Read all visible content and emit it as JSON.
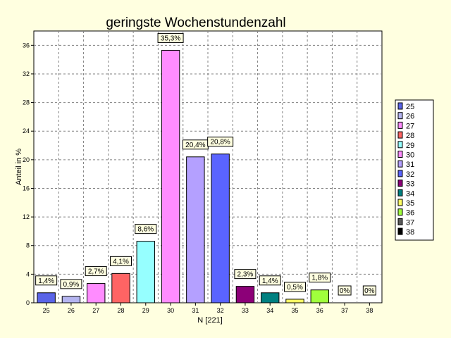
{
  "chart_data": {
    "type": "bar",
    "title": "geringste Wochenstundenzahl",
    "xlabel": "N [221]",
    "ylabel": "Anteil in %",
    "ylim": [
      0,
      38
    ],
    "yticks": [
      0,
      4,
      8,
      12,
      16,
      20,
      24,
      28,
      32,
      36
    ],
    "grid": true,
    "legend_position": "right",
    "categories": [
      "25",
      "26",
      "27",
      "28",
      "29",
      "30",
      "31",
      "32",
      "33",
      "34",
      "35",
      "36",
      "37",
      "38"
    ],
    "values": [
      1.4,
      0.9,
      2.7,
      4.1,
      8.6,
      35.3,
      20.4,
      20.8,
      2.3,
      1.4,
      0.5,
      1.8,
      0,
      0
    ],
    "data_labels": [
      "1,4%",
      "0,9%",
      "2,7%",
      "4,1%",
      "8,6%",
      "35,3%",
      "20,4%",
      "20,8%",
      "2,3%",
      "1,4%",
      "0,5%",
      "1,8%",
      "0%",
      "0%"
    ],
    "colors": [
      "#5a64e8",
      "#b4b4f0",
      "#ff8cff",
      "#ff6464",
      "#96ffff",
      "#ff8cff",
      "#b4a0ff",
      "#5a64ff",
      "#8c0078",
      "#008080",
      "#ffff64",
      "#a0ff3c",
      "#5a5a5a",
      "#000000"
    ],
    "legend": [
      "25",
      "26",
      "27",
      "28",
      "29",
      "30",
      "31",
      "32",
      "33",
      "34",
      "35",
      "36",
      "37",
      "38"
    ],
    "background": "#ffffe0",
    "plot_background": "#ffffff"
  }
}
